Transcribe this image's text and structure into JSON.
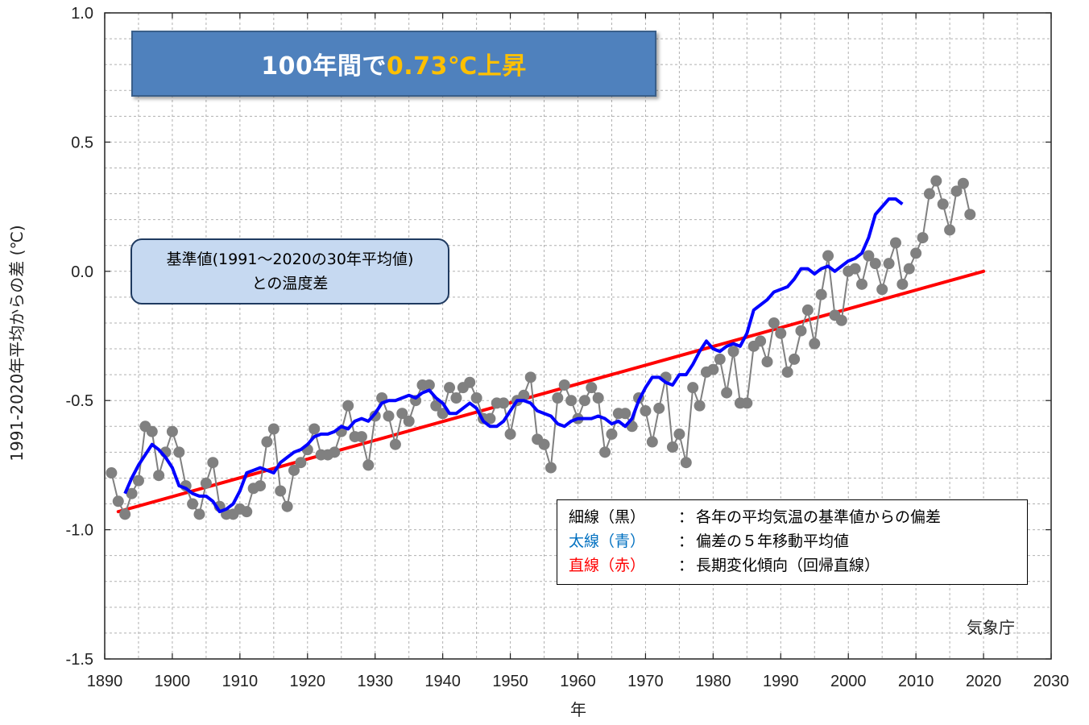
{
  "headline": {
    "prefix": "100年間で",
    "highlight": "0.73℃上昇"
  },
  "baseline_note": {
    "line1": "基準値(1991～2020の30年平均値)",
    "line2": "との温度差"
  },
  "legend": [
    {
      "key": "細線（黒）",
      "colon": "：",
      "desc": "各年の平均気温の基準値からの偏差",
      "color": "#000000"
    },
    {
      "key": "太線（青）",
      "colon": "：",
      "desc": "偏差の５年移動平均値",
      "color": "#0070c0"
    },
    {
      "key": "直線（赤）",
      "colon": "：",
      "desc": "長期変化傾向（回帰直線）",
      "color": "#ff0000"
    }
  ],
  "credit": "気象庁",
  "colors": {
    "annual_line": "#808080",
    "annual_marker": "#808080",
    "moving_avg": "#0000ff",
    "trend": "#ff0000",
    "grid": "#b0b0b0"
  },
  "chart_data": {
    "type": "line",
    "xlabel": "年",
    "ylabel": "1991-2020年平均からの差 (℃)",
    "xlim": [
      1890,
      2030
    ],
    "ylim": [
      -1.5,
      1.0
    ],
    "x_ticks": [
      1890,
      1900,
      1910,
      1920,
      1930,
      1940,
      1950,
      1960,
      1970,
      1980,
      1990,
      2000,
      2010,
      2020,
      2030
    ],
    "y_ticks": [
      "1.0",
      "0.5",
      "0.0",
      "-0.5",
      "-1.0",
      "-1.5"
    ],
    "y_tick_values": [
      1.0,
      0.5,
      0.0,
      -0.5,
      -1.0,
      -1.5
    ],
    "grid": true,
    "legend_position": "bottom-right",
    "series": [
      {
        "name": "細線（黒）",
        "role": "annual",
        "start_year": 1891,
        "values": [
          -0.78,
          -0.89,
          -0.94,
          -0.86,
          -0.81,
          -0.6,
          -0.62,
          -0.79,
          -0.7,
          -0.62,
          -0.7,
          -0.83,
          -0.9,
          -0.94,
          -0.82,
          -0.74,
          -0.91,
          -0.94,
          -0.94,
          -0.92,
          -0.93,
          -0.84,
          -0.83,
          -0.66,
          -0.61,
          -0.85,
          -0.91,
          -0.77,
          -0.74,
          -0.69,
          -0.61,
          -0.71,
          -0.71,
          -0.7,
          -0.62,
          -0.52,
          -0.64,
          -0.64,
          -0.75,
          -0.56,
          -0.49,
          -0.56,
          -0.67,
          -0.55,
          -0.58,
          -0.5,
          -0.44,
          -0.44,
          -0.52,
          -0.55,
          -0.45,
          -0.49,
          -0.45,
          -0.43,
          -0.49,
          -0.57,
          -0.57,
          -0.51,
          -0.51,
          -0.63,
          -0.5,
          -0.48,
          -0.41,
          -0.65,
          -0.67,
          -0.76,
          -0.49,
          -0.44,
          -0.5,
          -0.57,
          -0.5,
          -0.45,
          -0.49,
          -0.7,
          -0.63,
          -0.55,
          -0.55,
          -0.6,
          -0.49,
          -0.54,
          -0.66,
          -0.53,
          -0.41,
          -0.68,
          -0.63,
          -0.74,
          -0.45,
          -0.52,
          -0.39,
          -0.38,
          -0.34,
          -0.47,
          -0.31,
          -0.51,
          -0.51,
          -0.29,
          -0.27,
          -0.35,
          -0.2,
          -0.24,
          -0.39,
          -0.34,
          -0.23,
          -0.15,
          -0.28,
          -0.09,
          0.06,
          -0.17,
          -0.19,
          0.0,
          0.01,
          -0.05,
          0.06,
          0.03,
          -0.07,
          0.03,
          0.11,
          -0.05,
          0.01,
          0.07,
          0.13,
          0.3,
          0.35,
          0.26,
          0.16,
          0.31,
          0.34,
          0.22
        ]
      },
      {
        "name": "太線（青）",
        "role": "moving_average",
        "start_year": 1893,
        "values": [
          -0.86,
          -0.8,
          -0.75,
          -0.71,
          -0.67,
          -0.69,
          -0.72,
          -0.76,
          -0.83,
          -0.84,
          -0.86,
          -0.87,
          -0.87,
          -0.89,
          -0.93,
          -0.92,
          -0.9,
          -0.85,
          -0.78,
          -0.77,
          -0.76,
          -0.77,
          -0.78,
          -0.74,
          -0.72,
          -0.7,
          -0.69,
          -0.67,
          -0.64,
          -0.63,
          -0.63,
          -0.62,
          -0.6,
          -0.61,
          -0.58,
          -0.57,
          -0.58,
          -0.55,
          -0.51,
          -0.5,
          -0.5,
          -0.49,
          -0.48,
          -0.49,
          -0.47,
          -0.46,
          -0.49,
          -0.51,
          -0.55,
          -0.55,
          -0.53,
          -0.51,
          -0.53,
          -0.58,
          -0.6,
          -0.6,
          -0.58,
          -0.54,
          -0.5,
          -0.5,
          -0.51,
          -0.54,
          -0.55,
          -0.56,
          -0.59,
          -0.6,
          -0.58,
          -0.57,
          -0.57,
          -0.57,
          -0.56,
          -0.57,
          -0.59,
          -0.58,
          -0.6,
          -0.57,
          -0.5,
          -0.45,
          -0.41,
          -0.41,
          -0.43,
          -0.44,
          -0.4,
          -0.4,
          -0.36,
          -0.31,
          -0.27,
          -0.3,
          -0.31,
          -0.29,
          -0.28,
          -0.29,
          -0.24,
          -0.15,
          -0.13,
          -0.11,
          -0.08,
          -0.07,
          -0.06,
          -0.03,
          0.01,
          0.01,
          -0.01,
          0.01,
          0.02,
          0.0,
          0.02,
          0.04,
          0.05,
          0.07,
          0.13,
          0.22,
          0.25,
          0.28,
          0.28,
          0.26
        ]
      },
      {
        "name": "直線（赤）",
        "role": "trend",
        "x": [
          1892,
          2020
        ],
        "values": [
          -0.93,
          0.0
        ]
      }
    ]
  }
}
